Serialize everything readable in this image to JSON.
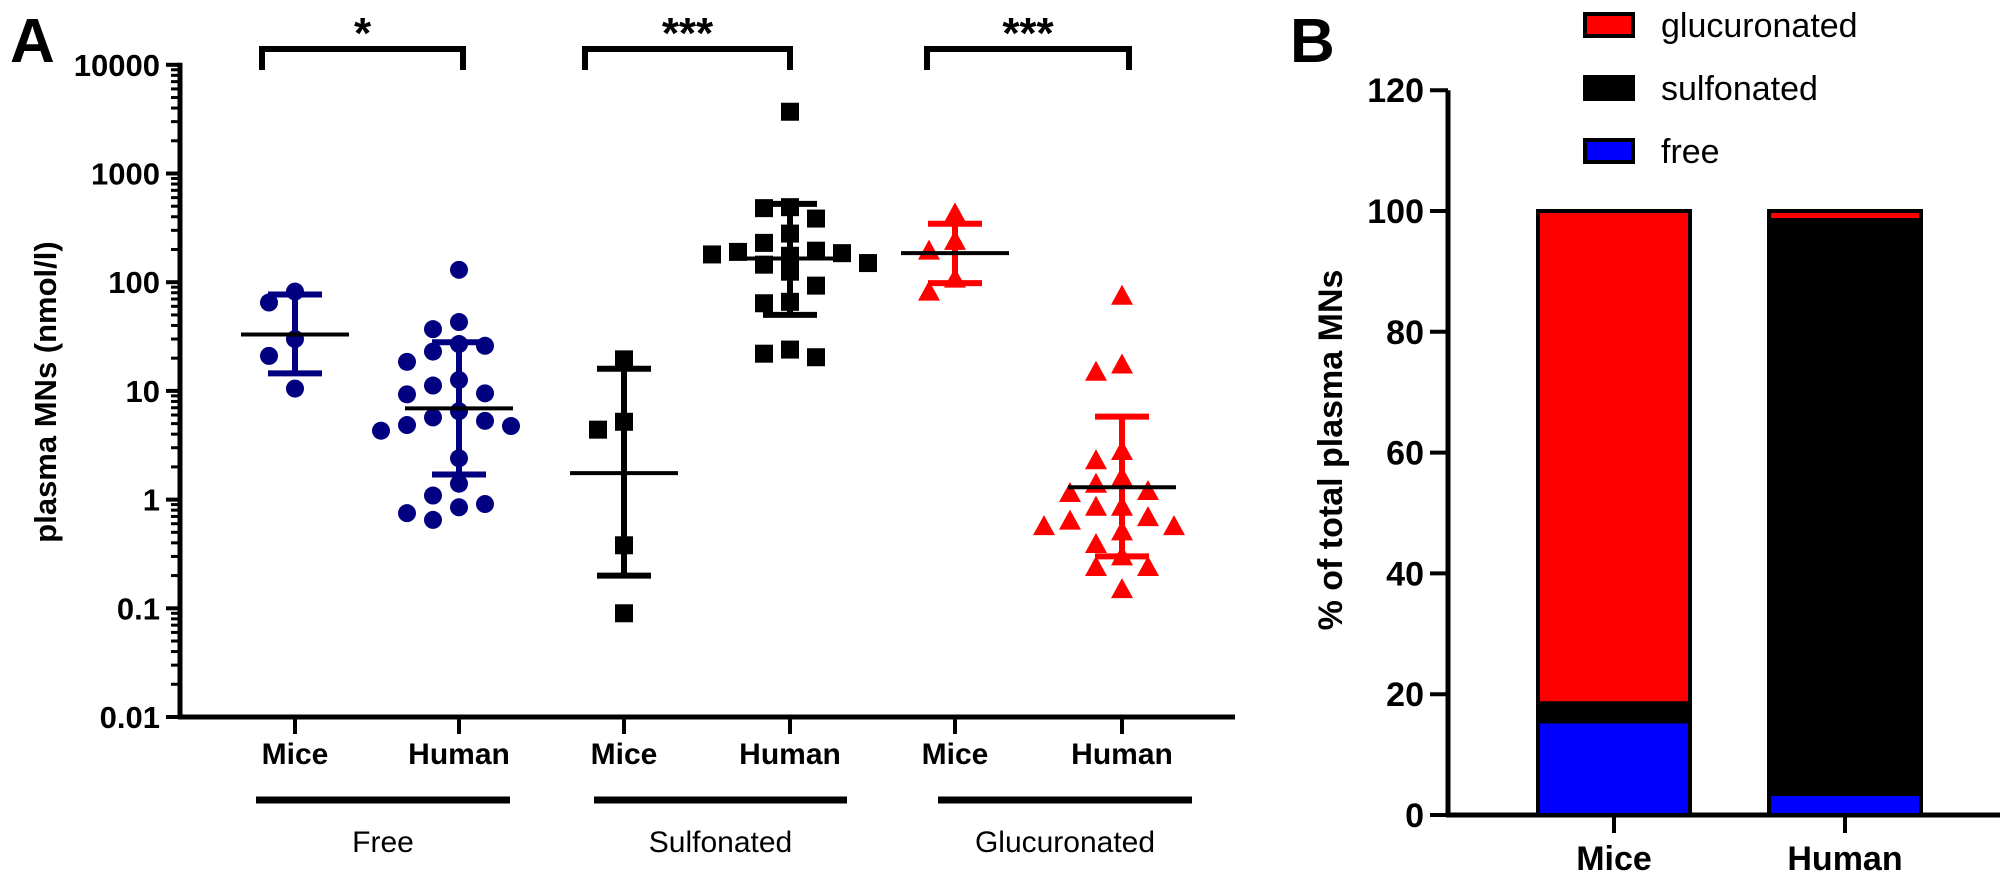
{
  "panel_a_label": "A",
  "panel_b_label": "B",
  "colors": {
    "free": "#000080",
    "sulfonated": "#000000",
    "glucuronated": "#ff0000",
    "free_bar": "#0000ff",
    "sulfonated_bar": "#000000",
    "glucuronated_bar": "#ff0000"
  },
  "chart_data": [
    {
      "type": "scatter",
      "ylabel": "plasma MNs (nmol/l)",
      "yscale": "log",
      "ylim": [
        0.01,
        10000
      ],
      "yticks": [
        "0.01",
        "0.1",
        "1",
        "10",
        "100",
        "1000",
        "10000"
      ],
      "categories": [
        "Mice",
        "Human",
        "Mice",
        "Human",
        "Mice",
        "Human"
      ],
      "groups": [
        {
          "label": "Free",
          "color": "#000080",
          "marker": "circle"
        },
        {
          "label": "Sulfonated",
          "color": "#000000",
          "marker": "square"
        },
        {
          "label": "Glucuronated",
          "color": "#ff0000",
          "marker": "triangle"
        }
      ],
      "series": [
        {
          "group": 0,
          "category": "Mice",
          "center": 33,
          "sd_upper": 77,
          "sd_lower": 14.5,
          "values": [
            82,
            65,
            30,
            21,
            10.5
          ]
        },
        {
          "group": 0,
          "category": "Human",
          "center": 6.9,
          "sd_upper": 28,
          "sd_lower": 1.7,
          "values": [
            130,
            43,
            37,
            27,
            26,
            23,
            18.5,
            12.6,
            11.2,
            9.5,
            9.3,
            6.5,
            5.7,
            5.3,
            4.85,
            4.75,
            4.3,
            2.4,
            1.4,
            1.09,
            0.91,
            0.85,
            0.75,
            0.65
          ]
        },
        {
          "group": 1,
          "category": "Mice",
          "center": 1.75,
          "sd_upper": 16,
          "sd_lower": 0.2,
          "values": [
            19.5,
            5.2,
            4.4,
            0.38,
            0.09
          ]
        },
        {
          "group": 1,
          "category": "Human",
          "center": 165,
          "sd_upper": 525,
          "sd_lower": 50,
          "values": [
            3700,
            490,
            480,
            385,
            280,
            230,
            195,
            190,
            185,
            180,
            175,
            150,
            145,
            130,
            125,
            93,
            66,
            64,
            24,
            22,
            20.4
          ]
        },
        {
          "group": 2,
          "category": "Mice",
          "center": 185,
          "sd_upper": 345,
          "sd_lower": 98,
          "values": [
            430,
            240,
            195,
            108,
            82
          ]
        },
        {
          "group": 2,
          "category": "Human",
          "center": 1.3,
          "sd_upper": 5.8,
          "sd_lower": 0.3,
          "values": [
            75,
            17.5,
            15,
            2.8,
            2.3,
            1.6,
            1.4,
            1.2,
            1.15,
            0.86,
            0.86,
            0.69,
            0.64,
            0.57,
            0.57,
            0.51,
            0.39,
            0.3,
            0.24,
            0.24,
            0.15
          ]
        }
      ],
      "significance": [
        {
          "group": 0,
          "label": "*"
        },
        {
          "group": 1,
          "label": "***"
        },
        {
          "group": 2,
          "label": "***"
        }
      ]
    },
    {
      "type": "bar",
      "stacked": true,
      "ylabel": "% of total plasma MNs",
      "ylim": [
        0,
        120
      ],
      "yticks": [
        "0",
        "20",
        "40",
        "60",
        "80",
        "100",
        "120"
      ],
      "categories": [
        "Mice",
        "Human"
      ],
      "legend_position": "top",
      "series": [
        {
          "name": "free",
          "color": "#0000ff",
          "values": [
            15.5,
            3.5
          ]
        },
        {
          "name": "sulfonated",
          "color": "#000000",
          "values": [
            3,
            95
          ]
        },
        {
          "name": "glucuronated",
          "color": "#ff0000",
          "values": [
            81.5,
            1.5
          ]
        }
      ],
      "legend": [
        "glucuronated",
        "sulfonated",
        "free"
      ]
    }
  ]
}
